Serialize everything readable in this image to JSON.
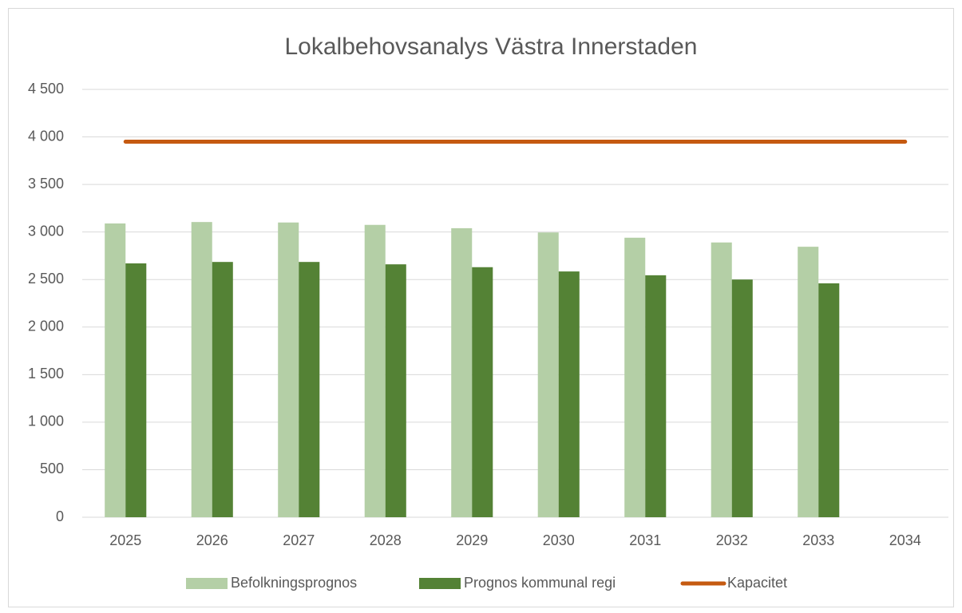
{
  "chart_data": {
    "type": "bar",
    "title": "Lokalbehovsanalys Västra Innerstaden",
    "categories": [
      "2025",
      "2026",
      "2027",
      "2028",
      "2029",
      "2030",
      "2031",
      "2032",
      "2033",
      "2034"
    ],
    "series": [
      {
        "name": "Befolkningsprognos",
        "color": "#b4cfa6",
        "type": "bar",
        "values": [
          3090,
          3105,
          3100,
          3075,
          3040,
          2995,
          2940,
          2890,
          2845,
          null
        ]
      },
      {
        "name": "Prognos kommunal regi",
        "color": "#548235",
        "type": "bar",
        "values": [
          2670,
          2685,
          2685,
          2660,
          2630,
          2585,
          2545,
          2500,
          2460,
          null
        ]
      },
      {
        "name": "Kapacitet",
        "color": "#c55a11",
        "type": "line",
        "values": [
          3950,
          3950,
          3950,
          3950,
          3950,
          3950,
          3950,
          3950,
          3950,
          3950
        ]
      }
    ],
    "ylim": [
      0,
      4500
    ],
    "yticks": [
      0,
      500,
      {
        "value": 1000,
        "label": "1 000"
      },
      {
        "value": 1500,
        "label": "1 500"
      },
      {
        "value": 2000,
        "label": "2 000"
      },
      {
        "value": 2500,
        "label": "2 500"
      },
      {
        "value": 3000,
        "label": "3 000"
      },
      {
        "value": 3500,
        "label": "3 500"
      },
      {
        "value": 4000,
        "label": "4 000"
      },
      {
        "value": 4500,
        "label": "4 500"
      }
    ],
    "grid": true,
    "legend": "bottom"
  }
}
